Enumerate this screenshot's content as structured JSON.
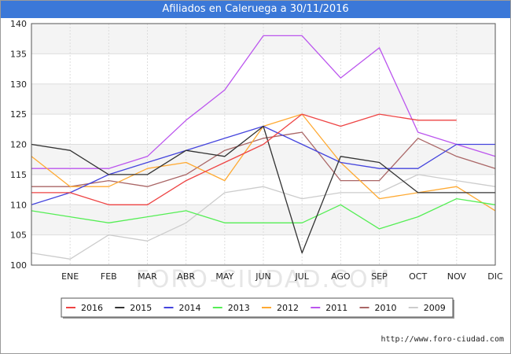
{
  "page": {
    "title": "Afiliados en Caleruega a 30/11/2016",
    "footer": "http://www.foro-ciudad.com",
    "watermark": "FORO-CIUDAD.COM"
  },
  "chart_data": {
    "type": "line",
    "title": "Afiliados en Caleruega a 30/11/2016",
    "categories": [
      "",
      "ENE",
      "FEB",
      "MAR",
      "ABR",
      "MAY",
      "JUN",
      "JUL",
      "AGO",
      "SEP",
      "OCT",
      "NOV",
      "DIC"
    ],
    "ylim": [
      100,
      140
    ],
    "yticks": [
      100,
      105,
      110,
      115,
      120,
      125,
      130,
      135,
      140
    ],
    "grid": true,
    "legend_position": "bottom",
    "series": [
      {
        "name": "2016",
        "color": "#ee4444",
        "values": [
          112,
          112,
          110,
          110,
          114,
          117,
          120,
          125,
          123,
          125,
          124,
          124,
          null
        ]
      },
      {
        "name": "2015",
        "color": "#333333",
        "values": [
          120,
          119,
          115,
          115,
          119,
          118,
          123,
          102,
          118,
          117,
          112,
          112,
          112
        ]
      },
      {
        "name": "2014",
        "color": "#4444dd",
        "values": [
          110,
          112,
          115,
          117,
          119,
          121,
          123,
          120,
          117,
          116,
          116,
          120,
          120
        ]
      },
      {
        "name": "2013",
        "color": "#55ee55",
        "values": [
          109,
          108,
          107,
          108,
          109,
          107,
          107,
          107,
          110,
          106,
          108,
          111,
          110
        ]
      },
      {
        "name": "2012",
        "color": "#ffaa33",
        "values": [
          118,
          113,
          113,
          116,
          117,
          114,
          123,
          125,
          117,
          111,
          112,
          113,
          109
        ]
      },
      {
        "name": "2011",
        "color": "#bb55ee",
        "values": [
          116,
          116,
          116,
          118,
          124,
          129,
          138,
          138,
          131,
          136,
          122,
          120,
          118
        ]
      },
      {
        "name": "2010",
        "color": "#aa6666",
        "values": [
          113,
          113,
          114,
          113,
          115,
          119,
          121,
          122,
          114,
          114,
          121,
          118,
          116
        ]
      },
      {
        "name": "2009",
        "color": "#cccccc",
        "values": [
          102,
          101,
          105,
          104,
          107,
          112,
          113,
          111,
          112,
          112,
          115,
          114,
          113
        ]
      }
    ]
  }
}
